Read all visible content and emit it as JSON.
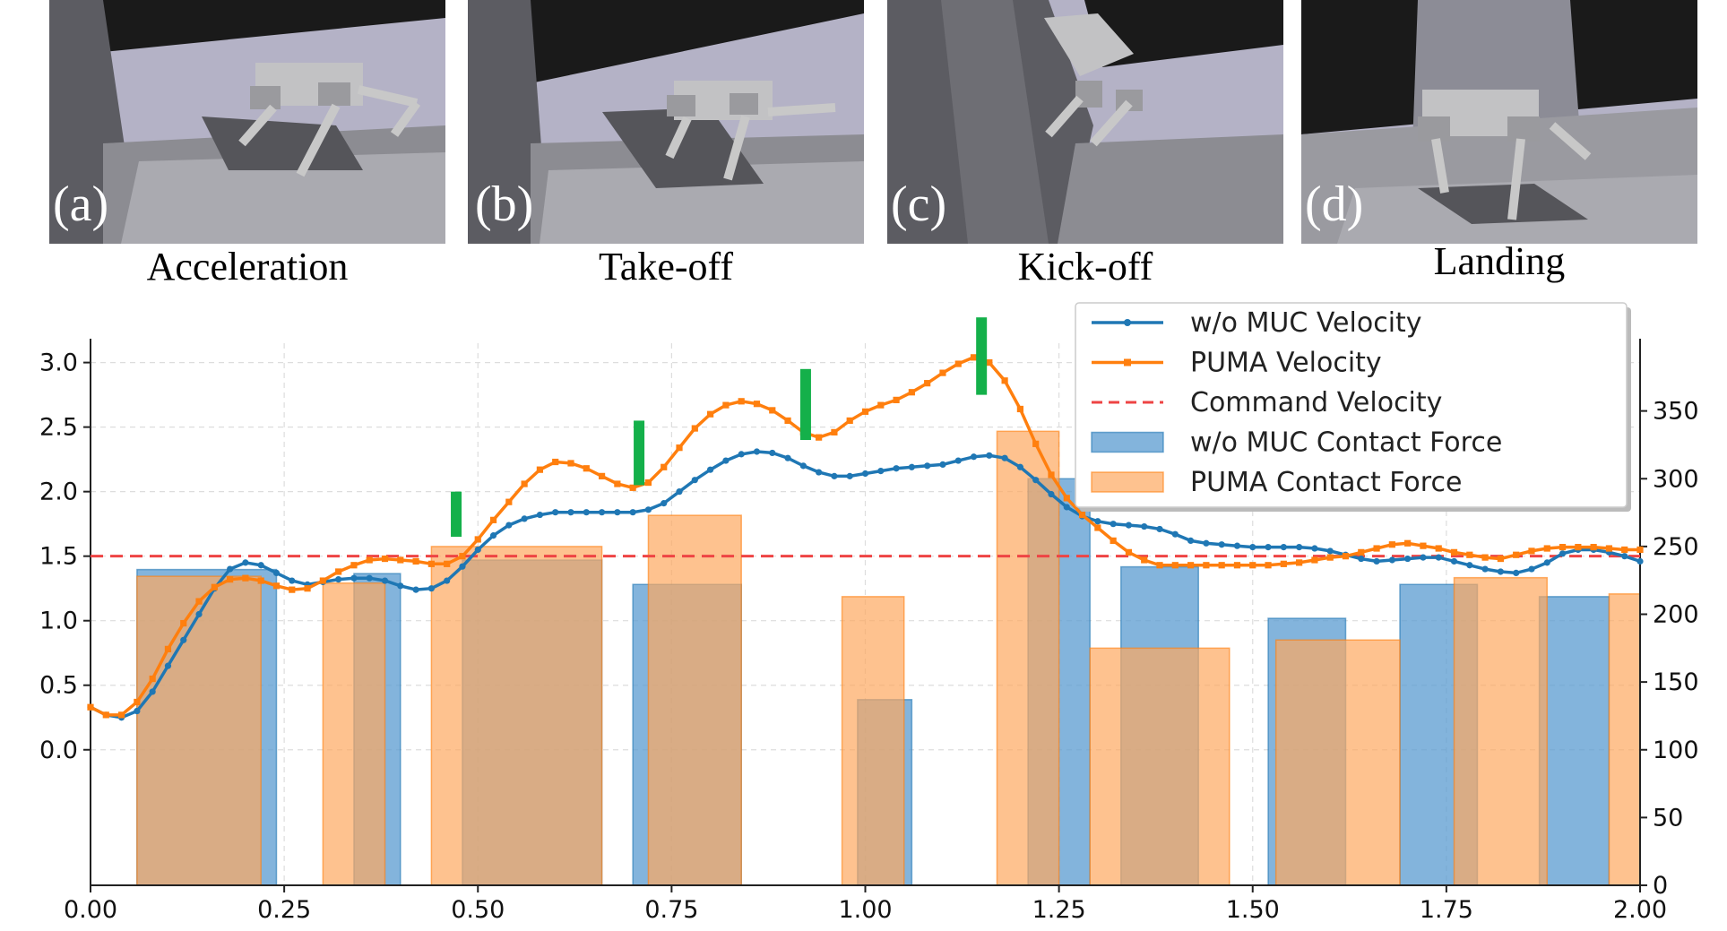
{
  "panels": [
    {
      "tag": "(a)",
      "caption": "Acceleration"
    },
    {
      "tag": "(b)",
      "caption": "Take-off"
    },
    {
      "tag": "(c)",
      "caption": "Kick-off"
    },
    {
      "tag": "(d)",
      "caption": "Landing"
    }
  ],
  "colors": {
    "blue": "#1f77b4",
    "orange": "#ff7f0e",
    "command": "#ee4444",
    "marker": "#14b04a",
    "blue_bar": "#5a9bd0",
    "orange_bar": "#fda860"
  },
  "chart_data": {
    "type": "line",
    "title": "",
    "xlabel": "",
    "ylabel": "",
    "xlim": [
      0.0,
      2.0
    ],
    "ylim_left": [
      -1.05,
      3.15
    ],
    "ylim_right": [
      0,
      400
    ],
    "x_ticks": [
      "0.00",
      "0.25",
      "0.50",
      "0.75",
      "1.00",
      "1.25",
      "1.50",
      "1.75",
      "2.00"
    ],
    "left_ticks": [
      "0.0",
      "0.5",
      "1.0",
      "1.5",
      "2.0",
      "2.5",
      "3.0"
    ],
    "right_ticks": [
      "0",
      "50",
      "100",
      "150",
      "200",
      "250",
      "300",
      "350"
    ],
    "grid": true,
    "legend_position": "top-right",
    "series": [
      {
        "name": "w/o MUC Velocity",
        "axis": "left",
        "kind": "line",
        "points": [
          [
            0.0,
            0.33
          ],
          [
            0.02,
            0.27
          ],
          [
            0.04,
            0.25
          ],
          [
            0.06,
            0.3
          ],
          [
            0.08,
            0.45
          ],
          [
            0.1,
            0.65
          ],
          [
            0.12,
            0.85
          ],
          [
            0.14,
            1.05
          ],
          [
            0.16,
            1.25
          ],
          [
            0.18,
            1.4
          ],
          [
            0.2,
            1.45
          ],
          [
            0.22,
            1.43
          ],
          [
            0.24,
            1.37
          ],
          [
            0.26,
            1.31
          ],
          [
            0.28,
            1.28
          ],
          [
            0.3,
            1.3
          ],
          [
            0.32,
            1.32
          ],
          [
            0.34,
            1.33
          ],
          [
            0.36,
            1.33
          ],
          [
            0.38,
            1.31
          ],
          [
            0.4,
            1.27
          ],
          [
            0.42,
            1.24
          ],
          [
            0.44,
            1.25
          ],
          [
            0.46,
            1.31
          ],
          [
            0.48,
            1.42
          ],
          [
            0.5,
            1.55
          ],
          [
            0.52,
            1.66
          ],
          [
            0.54,
            1.74
          ],
          [
            0.56,
            1.79
          ],
          [
            0.58,
            1.82
          ],
          [
            0.6,
            1.84
          ],
          [
            0.62,
            1.84
          ],
          [
            0.64,
            1.84
          ],
          [
            0.66,
            1.84
          ],
          [
            0.68,
            1.84
          ],
          [
            0.7,
            1.84
          ],
          [
            0.72,
            1.86
          ],
          [
            0.74,
            1.91
          ],
          [
            0.76,
            2.0
          ],
          [
            0.78,
            2.09
          ],
          [
            0.8,
            2.17
          ],
          [
            0.82,
            2.24
          ],
          [
            0.84,
            2.29
          ],
          [
            0.86,
            2.31
          ],
          [
            0.88,
            2.3
          ],
          [
            0.9,
            2.26
          ],
          [
            0.92,
            2.2
          ],
          [
            0.94,
            2.15
          ],
          [
            0.96,
            2.12
          ],
          [
            0.98,
            2.12
          ],
          [
            1.0,
            2.14
          ],
          [
            1.02,
            2.16
          ],
          [
            1.04,
            2.18
          ],
          [
            1.06,
            2.19
          ],
          [
            1.08,
            2.2
          ],
          [
            1.1,
            2.21
          ],
          [
            1.12,
            2.24
          ],
          [
            1.14,
            2.27
          ],
          [
            1.16,
            2.28
          ],
          [
            1.18,
            2.26
          ],
          [
            1.2,
            2.19
          ],
          [
            1.22,
            2.09
          ],
          [
            1.24,
            1.98
          ],
          [
            1.26,
            1.88
          ],
          [
            1.28,
            1.81
          ],
          [
            1.3,
            1.77
          ],
          [
            1.32,
            1.75
          ],
          [
            1.34,
            1.74
          ],
          [
            1.36,
            1.73
          ],
          [
            1.38,
            1.71
          ],
          [
            1.4,
            1.67
          ],
          [
            1.42,
            1.62
          ],
          [
            1.44,
            1.6
          ],
          [
            1.46,
            1.59
          ],
          [
            1.48,
            1.58
          ],
          [
            1.5,
            1.57
          ],
          [
            1.52,
            1.57
          ],
          [
            1.54,
            1.57
          ],
          [
            1.56,
            1.57
          ],
          [
            1.58,
            1.56
          ],
          [
            1.6,
            1.54
          ],
          [
            1.62,
            1.51
          ],
          [
            1.64,
            1.48
          ],
          [
            1.66,
            1.46
          ],
          [
            1.68,
            1.47
          ],
          [
            1.7,
            1.48
          ],
          [
            1.72,
            1.49
          ],
          [
            1.74,
            1.49
          ],
          [
            1.76,
            1.46
          ],
          [
            1.78,
            1.43
          ],
          [
            1.8,
            1.4
          ],
          [
            1.82,
            1.38
          ],
          [
            1.84,
            1.37
          ],
          [
            1.86,
            1.4
          ],
          [
            1.88,
            1.45
          ],
          [
            1.9,
            1.52
          ],
          [
            1.92,
            1.55
          ],
          [
            1.94,
            1.55
          ],
          [
            1.96,
            1.53
          ],
          [
            1.98,
            1.5
          ],
          [
            2.0,
            1.46
          ]
        ]
      },
      {
        "name": "PUMA Velocity",
        "axis": "left",
        "kind": "line",
        "points": [
          [
            0.0,
            0.33
          ],
          [
            0.02,
            0.27
          ],
          [
            0.04,
            0.27
          ],
          [
            0.06,
            0.37
          ],
          [
            0.08,
            0.55
          ],
          [
            0.1,
            0.78
          ],
          [
            0.12,
            0.98
          ],
          [
            0.14,
            1.15
          ],
          [
            0.16,
            1.26
          ],
          [
            0.18,
            1.32
          ],
          [
            0.2,
            1.33
          ],
          [
            0.22,
            1.31
          ],
          [
            0.24,
            1.27
          ],
          [
            0.26,
            1.24
          ],
          [
            0.28,
            1.25
          ],
          [
            0.3,
            1.31
          ],
          [
            0.32,
            1.38
          ],
          [
            0.34,
            1.43
          ],
          [
            0.36,
            1.47
          ],
          [
            0.38,
            1.48
          ],
          [
            0.4,
            1.47
          ],
          [
            0.42,
            1.46
          ],
          [
            0.44,
            1.44
          ],
          [
            0.46,
            1.44
          ],
          [
            0.48,
            1.5
          ],
          [
            0.5,
            1.63
          ],
          [
            0.52,
            1.78
          ],
          [
            0.54,
            1.92
          ],
          [
            0.56,
            2.06
          ],
          [
            0.58,
            2.17
          ],
          [
            0.6,
            2.23
          ],
          [
            0.62,
            2.22
          ],
          [
            0.64,
            2.18
          ],
          [
            0.66,
            2.12
          ],
          [
            0.68,
            2.06
          ],
          [
            0.7,
            2.03
          ],
          [
            0.72,
            2.07
          ],
          [
            0.74,
            2.19
          ],
          [
            0.76,
            2.34
          ],
          [
            0.78,
            2.49
          ],
          [
            0.8,
            2.6
          ],
          [
            0.82,
            2.67
          ],
          [
            0.84,
            2.7
          ],
          [
            0.86,
            2.68
          ],
          [
            0.88,
            2.63
          ],
          [
            0.9,
            2.55
          ],
          [
            0.92,
            2.46
          ],
          [
            0.94,
            2.42
          ],
          [
            0.96,
            2.46
          ],
          [
            0.98,
            2.55
          ],
          [
            1.0,
            2.62
          ],
          [
            1.02,
            2.67
          ],
          [
            1.04,
            2.71
          ],
          [
            1.06,
            2.77
          ],
          [
            1.08,
            2.84
          ],
          [
            1.1,
            2.92
          ],
          [
            1.12,
            2.99
          ],
          [
            1.14,
            3.04
          ],
          [
            1.16,
            3.0
          ],
          [
            1.18,
            2.86
          ],
          [
            1.2,
            2.64
          ],
          [
            1.22,
            2.37
          ],
          [
            1.24,
            2.13
          ],
          [
            1.26,
            1.95
          ],
          [
            1.28,
            1.82
          ],
          [
            1.3,
            1.72
          ],
          [
            1.32,
            1.62
          ],
          [
            1.34,
            1.53
          ],
          [
            1.36,
            1.47
          ],
          [
            1.38,
            1.43
          ],
          [
            1.4,
            1.43
          ],
          [
            1.42,
            1.43
          ],
          [
            1.44,
            1.43
          ],
          [
            1.46,
            1.43
          ],
          [
            1.48,
            1.43
          ],
          [
            1.5,
            1.43
          ],
          [
            1.52,
            1.43
          ],
          [
            1.54,
            1.44
          ],
          [
            1.56,
            1.45
          ],
          [
            1.58,
            1.47
          ],
          [
            1.6,
            1.49
          ],
          [
            1.62,
            1.5
          ],
          [
            1.64,
            1.53
          ],
          [
            1.66,
            1.56
          ],
          [
            1.68,
            1.59
          ],
          [
            1.7,
            1.6
          ],
          [
            1.72,
            1.58
          ],
          [
            1.74,
            1.56
          ],
          [
            1.76,
            1.53
          ],
          [
            1.78,
            1.51
          ],
          [
            1.8,
            1.49
          ],
          [
            1.82,
            1.48
          ],
          [
            1.84,
            1.51
          ],
          [
            1.86,
            1.54
          ],
          [
            1.88,
            1.56
          ],
          [
            1.9,
            1.57
          ],
          [
            1.92,
            1.57
          ],
          [
            1.94,
            1.57
          ],
          [
            1.96,
            1.56
          ],
          [
            1.98,
            1.55
          ],
          [
            2.0,
            1.55
          ]
        ]
      },
      {
        "name": "Command Velocity",
        "axis": "left",
        "kind": "hline",
        "y": 1.5
      },
      {
        "name": "w/o MUC Contact Force",
        "axis": "right",
        "kind": "bar",
        "bars": [
          [
            0.06,
            0.24,
            233
          ],
          [
            0.34,
            0.4,
            230
          ],
          [
            0.48,
            0.66,
            240
          ],
          [
            0.7,
            0.84,
            222
          ],
          [
            0.99,
            1.06,
            137
          ],
          [
            1.21,
            1.29,
            300
          ],
          [
            1.33,
            1.43,
            235
          ],
          [
            1.52,
            1.62,
            197
          ],
          [
            1.69,
            1.79,
            222
          ],
          [
            1.87,
            1.96,
            213
          ]
        ]
      },
      {
        "name": "PUMA Contact Force",
        "axis": "right",
        "kind": "bar",
        "bars": [
          [
            0.06,
            0.22,
            228
          ],
          [
            0.3,
            0.38,
            223
          ],
          [
            0.44,
            0.66,
            250
          ],
          [
            0.72,
            0.84,
            273
          ],
          [
            0.97,
            1.05,
            213
          ],
          [
            1.17,
            1.25,
            335
          ],
          [
            1.29,
            1.47,
            175
          ],
          [
            1.53,
            1.69,
            181
          ],
          [
            1.76,
            1.88,
            227
          ],
          [
            1.96,
            2.0,
            215
          ]
        ]
      }
    ],
    "phase_markers": [
      [
        0.472,
        1.65,
        2.0
      ],
      [
        0.708,
        2.05,
        2.55
      ],
      [
        0.923,
        2.4,
        2.95
      ],
      [
        1.15,
        2.75,
        3.35
      ]
    ]
  }
}
